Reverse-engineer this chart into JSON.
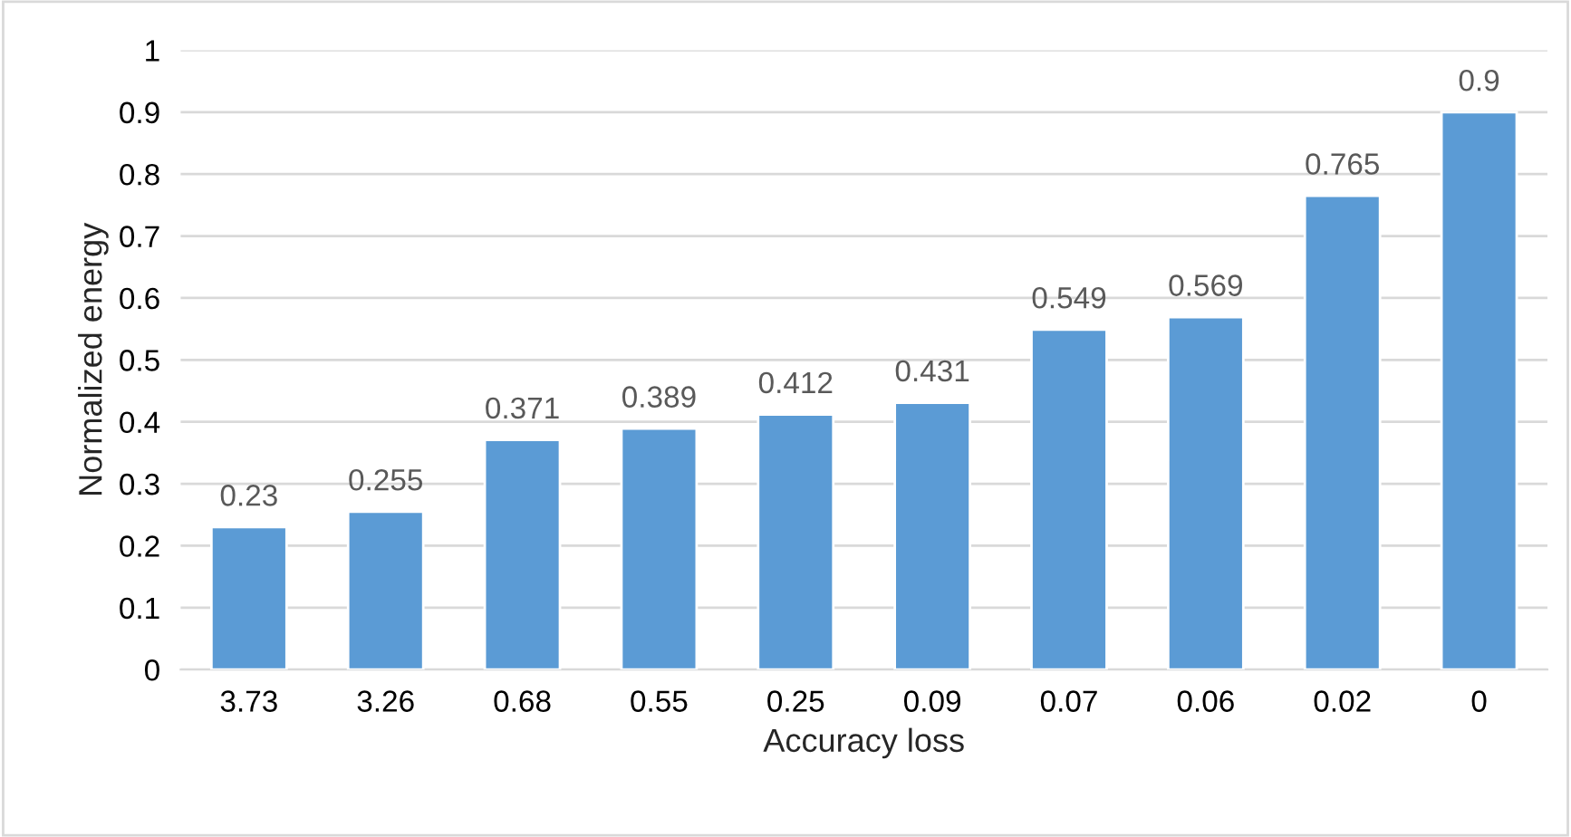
{
  "chart_data": {
    "type": "bar",
    "xlabel": "Accuracy loss",
    "ylabel": "Normalized energy",
    "categories": [
      "3.73",
      "3.26",
      "0.68",
      "0.55",
      "0.25",
      "0.09",
      "0.07",
      "0.06",
      "0.02",
      "0"
    ],
    "values": [
      0.23,
      0.255,
      0.371,
      0.389,
      0.412,
      0.431,
      0.549,
      0.569,
      0.765,
      0.9
    ],
    "color": "#5b9bd5",
    "ylim": [
      0,
      1
    ],
    "yticks": [
      0,
      0.1,
      0.2,
      0.3,
      0.4,
      0.5,
      0.6,
      0.7,
      0.8,
      0.9,
      1
    ],
    "grid": "y",
    "data_labels": true,
    "legend": false
  }
}
